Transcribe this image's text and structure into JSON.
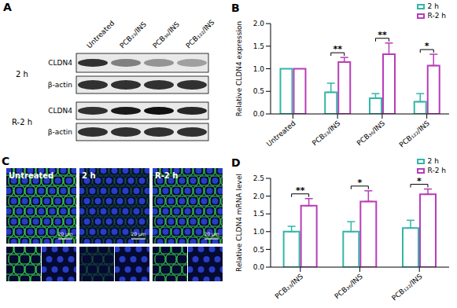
{
  "panels": {
    "A": {
      "letter": "A",
      "columns": [
        "Untreated",
        "PCB₂₃/INS",
        "PCB₃₆/INS",
        "PCB₁₂₂/INS"
      ],
      "rows": [
        {
          "label": "2 h",
          "bands": [
            "CLDN4",
            "β-actin"
          ]
        },
        {
          "label": "R-2 h",
          "bands": [
            "CLDN4",
            "β-actin"
          ]
        }
      ]
    },
    "C": {
      "letter": "C",
      "images": [
        "Untreated",
        "2 h",
        "R-2 h"
      ],
      "scale_bar": "20 μm"
    }
  },
  "chart_data": [
    {
      "letter": "B",
      "type": "bar",
      "categories": [
        "Untreated",
        "PCB₂₃/INS",
        "PCB₃₆/INS",
        "PCB₁₂₂/INS"
      ],
      "series": [
        {
          "name": "2 h",
          "color": "#33b5a8",
          "values": [
            1.0,
            0.48,
            0.35,
            0.27
          ],
          "errors": [
            null,
            0.2,
            0.1,
            0.18
          ]
        },
        {
          "name": "R-2 h",
          "color": "#b93cb8",
          "values": [
            1.0,
            1.15,
            1.32,
            1.07
          ],
          "errors": [
            null,
            0.1,
            0.25,
            0.25
          ]
        }
      ],
      "significance": [
        null,
        "**",
        "**",
        "*"
      ],
      "ylabel": "Relative CLDN4 expression",
      "ylim": [
        0,
        2
      ],
      "yticks": [
        {
          "value": 0,
          "label": "0.0"
        },
        {
          "value": 0.5,
          "label": "0.5"
        },
        {
          "value": 1,
          "label": "1.0"
        },
        {
          "value": 1.5,
          "label": "1.5"
        },
        {
          "value": 2,
          "label": "2.0"
        }
      ],
      "legend": "upper right"
    },
    {
      "letter": "D",
      "type": "bar",
      "categories": [
        "PCB₂₃/INS",
        "PCB₃₆/INS",
        "PCB₁₂₂/INS"
      ],
      "series": [
        {
          "name": "2 h",
          "color": "#33b5a8",
          "values": [
            1.0,
            1.0,
            1.1
          ],
          "errors": [
            0.15,
            0.28,
            0.22
          ]
        },
        {
          "name": "R-2 h",
          "color": "#b93cb8",
          "values": [
            1.73,
            1.85,
            2.05
          ],
          "errors": [
            0.2,
            0.3,
            0.15
          ]
        }
      ],
      "significance": [
        "**",
        "*",
        "*"
      ],
      "ylabel": "Relative CLDN4 mRNA level",
      "ylim": [
        0,
        2.5
      ],
      "yticks": [
        {
          "value": 0,
          "label": "0.0"
        },
        {
          "value": 0.5,
          "label": "0.5"
        },
        {
          "value": 1,
          "label": "1.0"
        },
        {
          "value": 1.5,
          "label": "1.5"
        },
        {
          "value": 2,
          "label": "2.0"
        },
        {
          "value": 2.5,
          "label": "2.5"
        }
      ],
      "legend": "upper right"
    }
  ]
}
